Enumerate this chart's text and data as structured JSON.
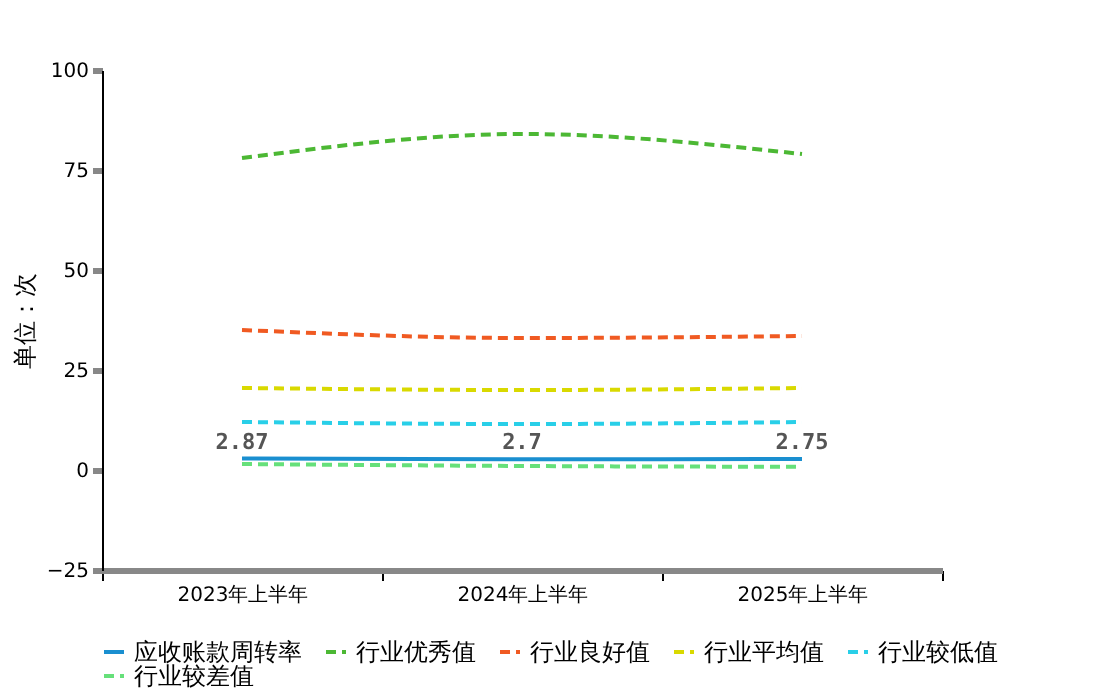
{
  "chart_data": {
    "type": "line",
    "ylabel": "单位：次",
    "categories": [
      "2023年上半年",
      "2024年上半年",
      "2025年上半年"
    ],
    "ylim": [
      -25,
      100
    ],
    "yticks": [
      -25,
      0,
      25,
      50,
      75,
      100
    ],
    "grid": false,
    "legend": "bottom",
    "marker": "none",
    "series": [
      {
        "name": "应收账款周转率",
        "color": "#1a8fd0",
        "line_style": "solid",
        "values": [
          2.87,
          2.7,
          2.75
        ],
        "value_labels": [
          "2.87",
          "2.7",
          "2.75"
        ]
      },
      {
        "name": "行业优秀值",
        "color": "#4cb834",
        "line_style": "dashed",
        "values": [
          78,
          84,
          79
        ]
      },
      {
        "name": "行业良好值",
        "color": "#f05a22",
        "line_style": "dashed",
        "values": [
          35,
          33,
          33.5
        ]
      },
      {
        "name": "行业平均值",
        "color": "#d9d900",
        "line_style": "dashed",
        "values": [
          20.5,
          20,
          20.5
        ]
      },
      {
        "name": "行业较低值",
        "color": "#29cfe8",
        "line_style": "dashed",
        "values": [
          12,
          11.5,
          12
        ]
      },
      {
        "name": "行业较差值",
        "color": "#66e07a",
        "line_style": "dashed",
        "values": [
          1.5,
          1,
          0.8
        ]
      }
    ]
  }
}
